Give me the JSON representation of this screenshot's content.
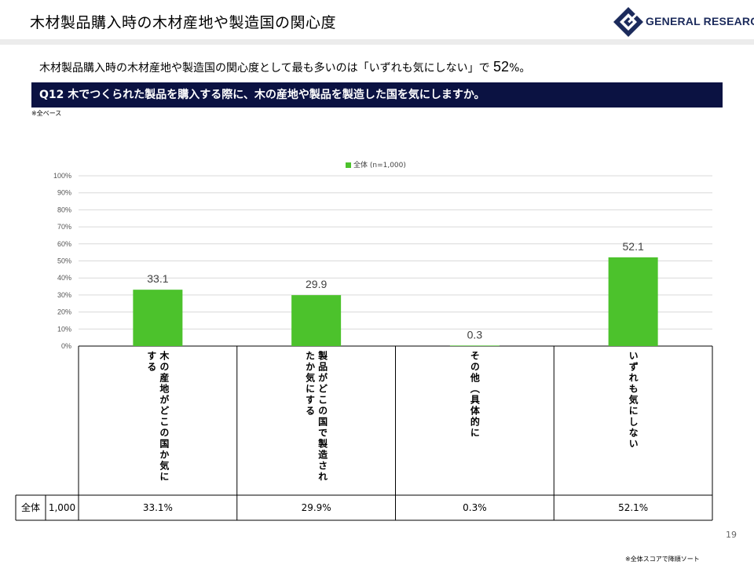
{
  "header": {
    "title": "木材製品購入時の木材産地や製造国の関心度",
    "logo_text": "GENERAL RESEARCH"
  },
  "summary": {
    "text_before": "木材製品購入時の木材産地や製造国の関心度として最も多いのは「いずれも気にしない」で ",
    "highlight": "52",
    "text_after": "%。"
  },
  "question": {
    "text": "Q12 木でつくられた製品を購入する際に、木の産地や製品を製造した国を気にしますか。"
  },
  "base_note": "※全ベース",
  "colors": {
    "bar": "#4cc22c",
    "question_bg": "#0b1242",
    "logo": "#1c2b5c"
  },
  "chart_data": {
    "type": "bar",
    "categories": [
      "木の産地がどこの国か気にする",
      "製品がどこの国で製造されたか気にする",
      "その他（具体的に",
      "いずれも気にしない"
    ],
    "series": [
      {
        "name": "全体 (n=1,000)",
        "values": [
          33.1,
          29.9,
          0.3,
          52.1
        ]
      }
    ],
    "data_labels": [
      "33.1",
      "29.9",
      "0.3",
      "52.1"
    ],
    "ylim": [
      0,
      100
    ],
    "yticks": [
      "0%",
      "10%",
      "20%",
      "30%",
      "40%",
      "50%",
      "60%",
      "70%",
      "80%",
      "90%",
      "100%"
    ],
    "grid": true,
    "legend_position": "top-center"
  },
  "table": {
    "row_label": "全体",
    "n": "1,000",
    "values": [
      "33.1%",
      "29.9%",
      "0.3%",
      "52.1%"
    ]
  },
  "page_number": "19",
  "footnote": "※全体スコアで降順ソート"
}
